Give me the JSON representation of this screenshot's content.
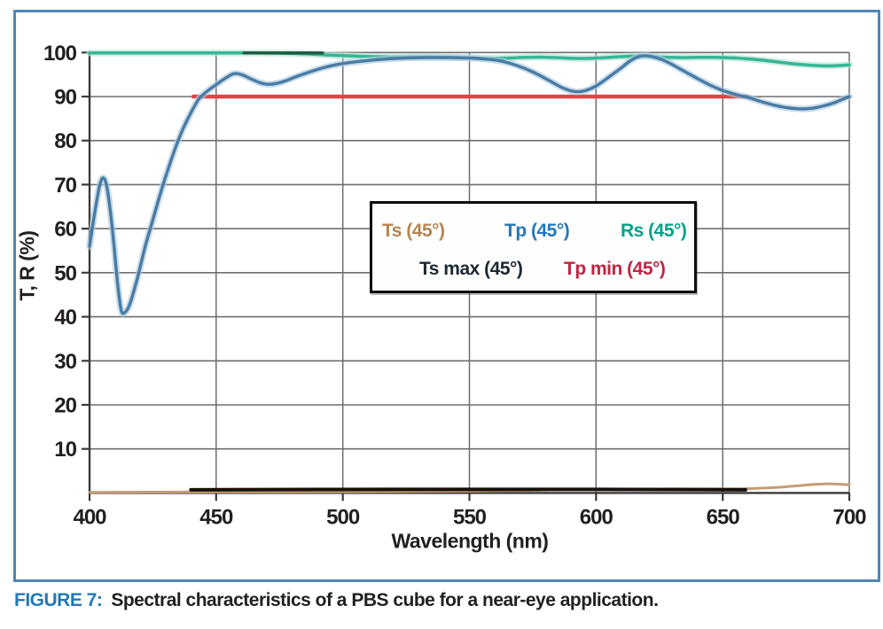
{
  "figure": {
    "caption_label": "FIGURE 7:",
    "caption_text": "Spectral characteristics of a PBS cube for a near-eye application.",
    "caption_label_color": "#2079b8",
    "caption_text_color": "#231f20",
    "frame_border_color": "#4e87b7"
  },
  "chart_data": {
    "type": "line",
    "title": "",
    "xlabel": "Wavelength (nm)",
    "ylabel": "T, R (%)",
    "xlim": [
      400,
      700
    ],
    "ylim": [
      0,
      100
    ],
    "xticks": [
      400,
      450,
      500,
      550,
      600,
      650,
      700
    ],
    "yticks": [
      10,
      20,
      30,
      40,
      50,
      60,
      70,
      80,
      90,
      100
    ],
    "grid": true,
    "grid_color": "#6e6e6e",
    "axis_color": "#3a3a3a",
    "legend_position": "center-right box",
    "legend": [
      {
        "label": "Ts (45°)",
        "color": "#b5854f",
        "row": 1
      },
      {
        "label": "Tp (45°)",
        "color": "#2277bb",
        "row": 1
      },
      {
        "label": "Rs (45°)",
        "color": "#00a38a",
        "row": 1
      },
      {
        "label": "Ts max (45°)",
        "color": "#1c2733",
        "row": 2
      },
      {
        "label": "Tp min (45°)",
        "color": "#c22340",
        "row": 2
      }
    ],
    "series": [
      {
        "name": "Ts (45°)",
        "key": "ts",
        "color": "#c59c72",
        "width": 3,
        "points": [
          [
            400,
            0.15
          ],
          [
            440,
            0.2
          ],
          [
            480,
            0.25
          ],
          [
            520,
            0.3
          ],
          [
            550,
            0.4
          ],
          [
            570,
            0.55
          ],
          [
            585,
            0.7
          ],
          [
            600,
            0.8
          ],
          [
            615,
            0.85
          ],
          [
            630,
            0.9
          ],
          [
            645,
            0.9
          ],
          [
            657,
            0.95
          ],
          [
            664,
            1.05
          ],
          [
            671,
            1.25
          ],
          [
            677,
            1.5
          ],
          [
            683,
            1.8
          ],
          [
            688,
            2.0
          ],
          [
            693,
            2.05
          ],
          [
            700,
            1.85
          ]
        ]
      },
      {
        "name": "Ts max (45°)",
        "key": "ts-max",
        "color": "#17100b",
        "width": 4,
        "points": [
          [
            440,
            0.7
          ],
          [
            520,
            0.8
          ],
          [
            600,
            0.8
          ],
          [
            659,
            0.7
          ]
        ]
      },
      {
        "name": "Tp min (45°)",
        "key": "tp-min",
        "color": "#e04547",
        "width": 4.5,
        "points": [
          [
            441,
            90
          ],
          [
            660,
            90
          ]
        ]
      },
      {
        "name": "Rs (45°)",
        "key": "rs",
        "color": "#36b694",
        "width": 3.5,
        "halo": "#b7e3d6",
        "points": [
          [
            400,
            99.9
          ],
          [
            420,
            99.9
          ],
          [
            440,
            99.9
          ],
          [
            455,
            99.9
          ],
          [
            465,
            99.9
          ],
          [
            475,
            99.85
          ],
          [
            485,
            99.7
          ],
          [
            495,
            99.4
          ],
          [
            505,
            99.2
          ],
          [
            515,
            99.05
          ],
          [
            525,
            99.0
          ],
          [
            535,
            99.0
          ],
          [
            545,
            98.9
          ],
          [
            552,
            98.75
          ],
          [
            558,
            98.65
          ],
          [
            565,
            98.75
          ],
          [
            572,
            98.9
          ],
          [
            578,
            98.95
          ],
          [
            584,
            98.85
          ],
          [
            590,
            98.7
          ],
          [
            596,
            98.65
          ],
          [
            602,
            98.8
          ],
          [
            608,
            99.0
          ],
          [
            613,
            99.15
          ],
          [
            618,
            99.2
          ],
          [
            623,
            99.05
          ],
          [
            629,
            98.9
          ],
          [
            635,
            98.85
          ],
          [
            641,
            98.9
          ],
          [
            647,
            98.9
          ],
          [
            653,
            98.8
          ],
          [
            659,
            98.6
          ],
          [
            665,
            98.3
          ],
          [
            671,
            97.9
          ],
          [
            677,
            97.5
          ],
          [
            683,
            97.2
          ],
          [
            689,
            97.0
          ],
          [
            694,
            97.0
          ],
          [
            700,
            97.2
          ]
        ]
      },
      {
        "name": "Rs dark segment (45°)",
        "key": "rs-dark",
        "color": "#1f5b40",
        "width": 3.5,
        "points": [
          [
            461,
            99.9
          ],
          [
            492,
            99.9
          ]
        ]
      },
      {
        "name": "Tp (45°)",
        "key": "tp",
        "color": "#4a7ba4",
        "width": 3.4,
        "halo": "#aecde0",
        "points": [
          [
            400,
            56
          ],
          [
            402,
            63.5
          ],
          [
            404,
            69.8
          ],
          [
            405.5,
            71.5
          ],
          [
            407,
            69
          ],
          [
            409,
            60
          ],
          [
            411,
            48
          ],
          [
            412.5,
            41.5
          ],
          [
            414,
            41
          ],
          [
            416,
            43
          ],
          [
            419,
            49
          ],
          [
            422,
            56
          ],
          [
            425,
            62
          ],
          [
            428,
            68
          ],
          [
            431,
            73.5
          ],
          [
            434,
            78.5
          ],
          [
            437,
            82.8
          ],
          [
            440,
            86.3
          ],
          [
            443,
            89.3
          ],
          [
            446,
            91
          ],
          [
            450,
            92.7
          ],
          [
            454,
            94.3
          ],
          [
            457,
            95.2
          ],
          [
            460,
            95
          ],
          [
            463,
            94.2
          ],
          [
            467,
            93.2
          ],
          [
            470,
            92.8
          ],
          [
            473,
            92.9
          ],
          [
            477,
            93.5
          ],
          [
            482,
            94.6
          ],
          [
            488,
            95.8
          ],
          [
            494,
            96.8
          ],
          [
            500,
            97.5
          ],
          [
            507,
            98
          ],
          [
            514,
            98.4
          ],
          [
            522,
            98.7
          ],
          [
            532,
            98.85
          ],
          [
            542,
            98.85
          ],
          [
            550,
            98.75
          ],
          [
            557,
            98.5
          ],
          [
            563,
            98
          ],
          [
            569,
            97
          ],
          [
            575,
            95.6
          ],
          [
            581,
            93.8
          ],
          [
            586,
            92.2
          ],
          [
            590,
            91.3
          ],
          [
            593,
            91.1
          ],
          [
            596,
            91.4
          ],
          [
            600,
            92.4
          ],
          [
            604,
            94
          ],
          [
            609,
            96.1
          ],
          [
            613,
            97.9
          ],
          [
            616,
            98.9
          ],
          [
            619,
            99.3
          ],
          [
            622,
            99.1
          ],
          [
            626,
            98.4
          ],
          [
            630,
            97.3
          ],
          [
            635,
            95.7
          ],
          [
            640,
            94.1
          ],
          [
            645,
            92.6
          ],
          [
            650,
            91.4
          ],
          [
            655,
            90.5
          ],
          [
            660,
            89.8
          ],
          [
            665,
            88.9
          ],
          [
            670,
            88.1
          ],
          [
            674,
            87.6
          ],
          [
            678,
            87.3
          ],
          [
            682,
            87.2
          ],
          [
            686,
            87.4
          ],
          [
            690,
            87.9
          ],
          [
            694,
            88.6
          ],
          [
            697,
            89.3
          ],
          [
            700,
            90
          ]
        ]
      }
    ]
  }
}
